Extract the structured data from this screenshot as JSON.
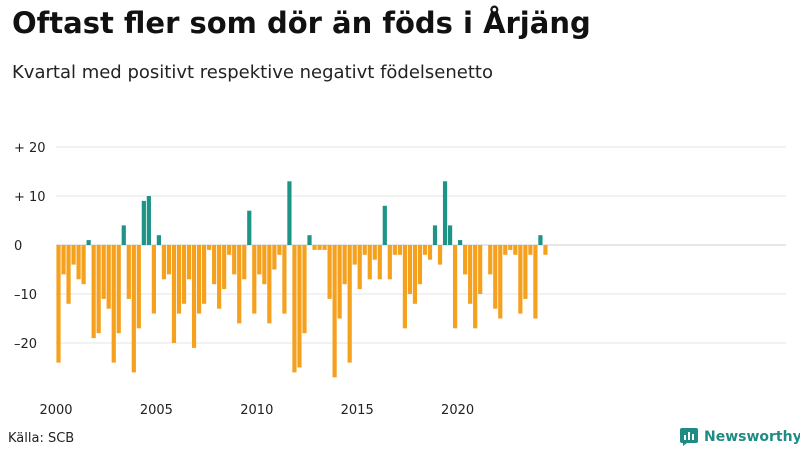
{
  "chart_data": {
    "type": "bar",
    "title": "Oftast fler som dör än föds i Årjäng",
    "subtitle": "Kvartal med positivt respektive negativt födelsenetto",
    "start_year": 2000,
    "x_tick_labels": [
      "2000",
      "2005",
      "2010",
      "2015",
      "2020"
    ],
    "y_ticks": [
      {
        "value": 20,
        "label": "+ 20"
      },
      {
        "value": 10,
        "label": "+ 10"
      },
      {
        "value": 0,
        "label": "0"
      },
      {
        "value": -10,
        "label": "–10"
      },
      {
        "value": -20,
        "label": "–20"
      }
    ],
    "ylim": [
      -28,
      22
    ],
    "grid": true,
    "colors": {
      "positive": "#1e9487",
      "negative": "#f5a11e"
    },
    "values": [
      -24,
      -6,
      -12,
      -4,
      -7,
      -8,
      1,
      -19,
      -18,
      -11,
      -13,
      -24,
      -18,
      4,
      -11,
      -26,
      -17,
      9,
      10,
      -14,
      2,
      -7,
      -6,
      -20,
      -14,
      -12,
      -7,
      -21,
      -14,
      -12,
      -1,
      -8,
      -13,
      -9,
      -2,
      -6,
      -16,
      -7,
      7,
      -14,
      -6,
      -8,
      -16,
      -5,
      -2,
      -14,
      13,
      -26,
      -25,
      -18,
      2,
      -1,
      -1,
      -1,
      -11,
      -27,
      -15,
      -8,
      -24,
      -4,
      -9,
      -2,
      -7,
      -3,
      -7,
      8,
      -7,
      -2,
      -2,
      -17,
      -10,
      -12,
      -8,
      -2,
      -3,
      4,
      -4,
      13,
      4,
      -17,
      1,
      -6,
      -12,
      -17,
      -10,
      0,
      -6,
      -13,
      -15,
      -2,
      -1,
      -2,
      -14,
      -11,
      -2,
      -15,
      2,
      -2
    ]
  },
  "source": "Källa: SCB",
  "brand": {
    "name": "Newsworthy",
    "icon": "newsworthy-logo-icon"
  }
}
